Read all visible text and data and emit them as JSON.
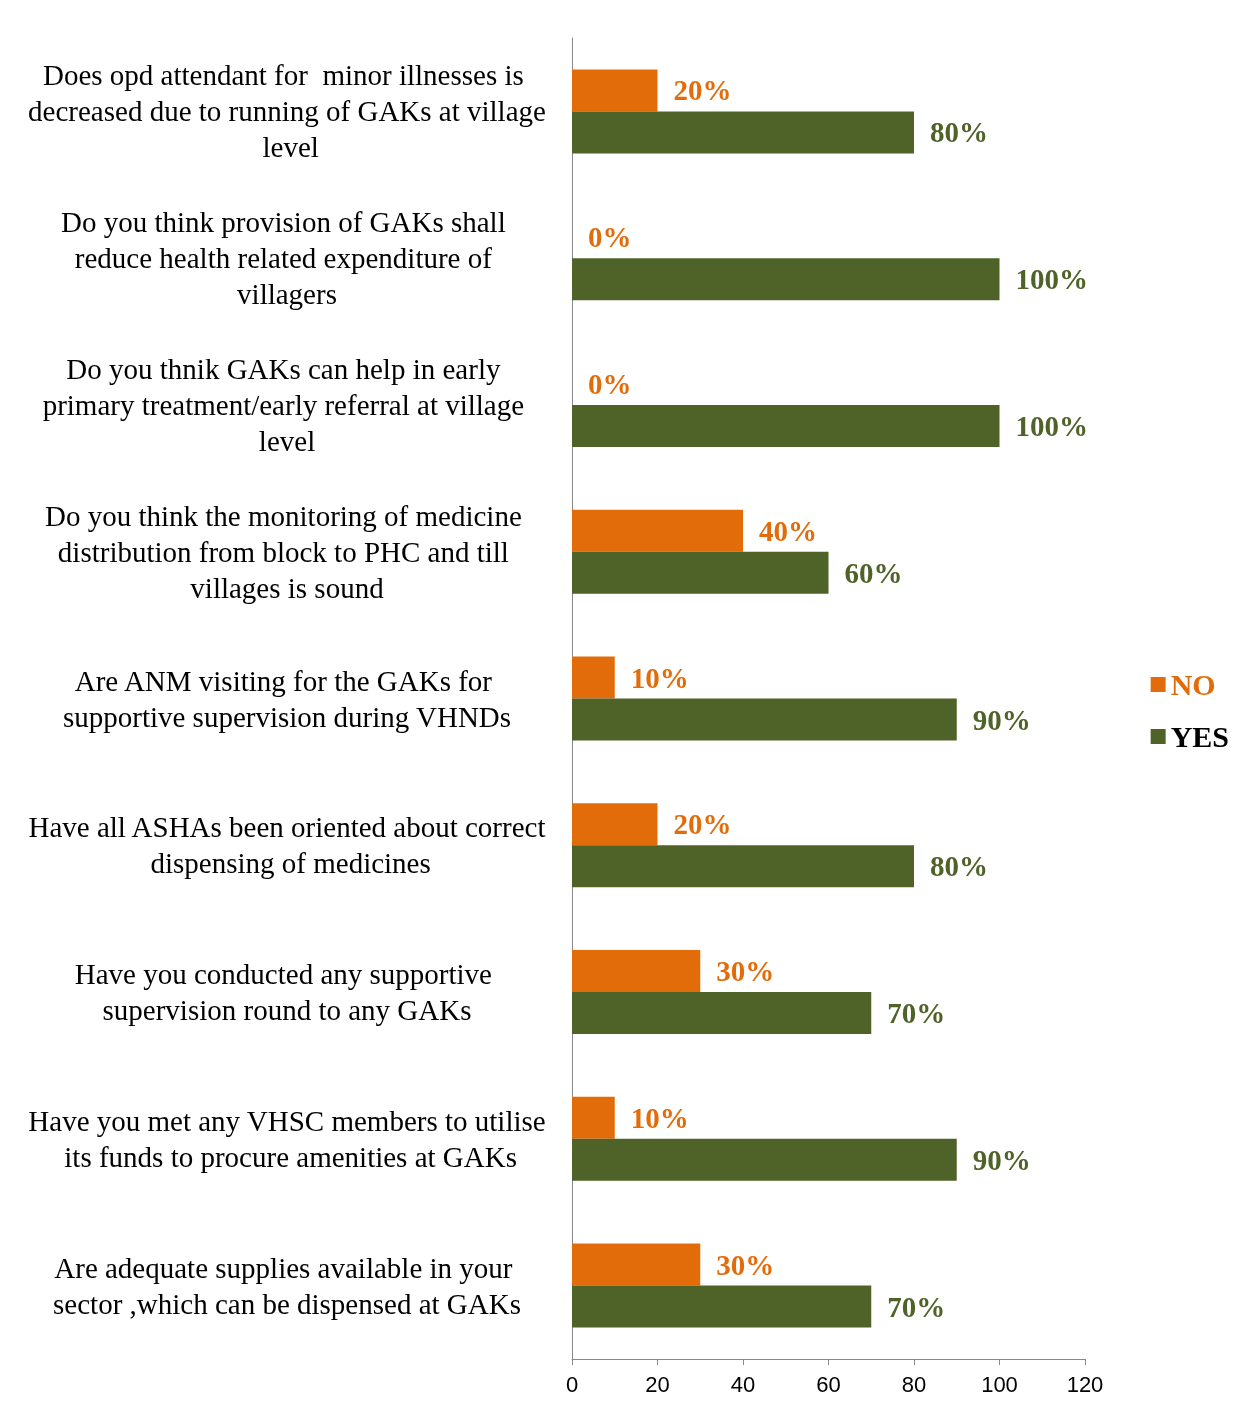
{
  "chart_data": {
    "type": "bar",
    "orientation": "horizontal",
    "categories": [
      "Does opd attendant for  minor illnesses is decreased due to running of GAKs at village level",
      "Do you think provision of GAKs shall reduce health related expenditure of villagers",
      "Do you thnik GAKs can help in early primary treatment/early referral at village level",
      "Do you think the monitoring of medicine distribution from block to PHC and till villages is sound",
      "Are ANM visiting for the GAKs for supportive supervision during VHNDs",
      "Have all ASHAs been oriented about correct dispensing of medicines",
      "Have you conducted any supportive supervision round to any GAKs",
      "Have you met any VHSC members to utilise its funds to procure amenities at GAKs",
      "Are adequate supplies available in your sector ,which can be dispensed at GAKs"
    ],
    "series": [
      {
        "name": "NO",
        "color": "#e36c0a",
        "values": [
          20,
          0,
          0,
          40,
          10,
          20,
          30,
          10,
          30
        ],
        "value_labels": [
          "20%",
          "0%",
          "0%",
          "40%",
          "10%",
          "20%",
          "30%",
          "10%",
          "30%"
        ]
      },
      {
        "name": "YES",
        "color": "#4f6228",
        "values": [
          80,
          100,
          100,
          60,
          90,
          80,
          70,
          90,
          70
        ],
        "value_labels": [
          "80%",
          "100%",
          "100%",
          "60%",
          "90%",
          "80%",
          "70%",
          "90%",
          "70%"
        ]
      }
    ],
    "xlim": [
      0,
      120
    ],
    "xticks": [
      0,
      20,
      40,
      60,
      80,
      100,
      120
    ],
    "grid": false,
    "legend": "right"
  }
}
